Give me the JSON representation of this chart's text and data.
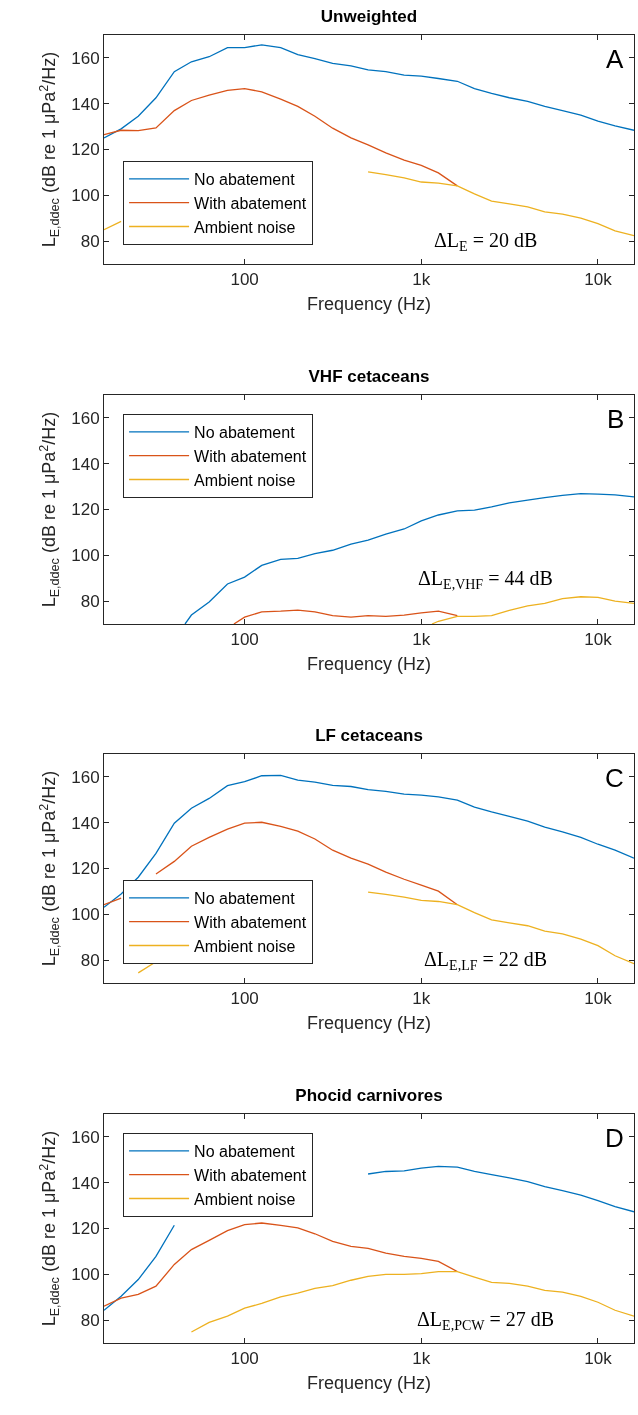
{
  "chart_data": [
    {
      "type": "line",
      "title": "Unweighted",
      "xlabel": "Frequency (Hz)",
      "ylabel": "L$_{E,ddec}$ (dB re 1 μPa$^{2}$/Hz)",
      "annotations": [
        "A",
        "ΔL$_{E}$ = 20 dB"
      ],
      "log": "x",
      "xlim": [
        16,
        16000
      ],
      "xticks": [
        {
          "value": 100,
          "label": "100"
        },
        {
          "value": 1000,
          "label": "1k"
        },
        {
          "value": 10000,
          "label": "10k"
        }
      ],
      "ylim": [
        70,
        170
      ],
      "yticks": [
        80,
        100,
        120,
        140,
        160
      ],
      "grid": false,
      "legend": "bottom left",
      "x": [
        16,
        20,
        25,
        31.5,
        40,
        50,
        63,
        80,
        100,
        125,
        160,
        200,
        250,
        315,
        400,
        500,
        630,
        800,
        1000,
        1250,
        1600,
        2000,
        2500,
        3150,
        4000,
        5000,
        6300,
        8000,
        10000,
        12500,
        16000
      ],
      "series": [
        {
          "name": "No abatement",
          "color": "#0072bd",
          "values": [
            125,
            129,
            134.5,
            142.6,
            154,
            158.3,
            160.5,
            164.5,
            164.5,
            165.7,
            164.5,
            161.4,
            159.7,
            157.6,
            156.5,
            154.8,
            154,
            152.5,
            152,
            151,
            149.8,
            146.6,
            144.5,
            142.6,
            141,
            138.8,
            137,
            135,
            132.4,
            130.3,
            128.4
          ]
        },
        {
          "name": "With abatement",
          "color": "#d95319",
          "values": [
            126.5,
            128.4,
            128.2,
            129.4,
            137,
            141.4,
            143.7,
            145.8,
            146.6,
            145.2,
            142,
            138.8,
            134.5,
            129.3,
            125.1,
            122,
            118.5,
            115.4,
            113.1,
            109.8,
            104.1,
            null,
            null,
            null,
            null,
            null,
            null,
            null,
            null,
            null,
            null
          ]
        },
        {
          "name": "Ambient noise",
          "color": "#edb120",
          "values": [
            85,
            88.6,
            null,
            null,
            null,
            null,
            null,
            null,
            null,
            null,
            null,
            null,
            null,
            null,
            null,
            110.2,
            109,
            107.6,
            105.8,
            105.3,
            104.1,
            100.6,
            97.5,
            96.3,
            94.9,
            92.8,
            91.8,
            90,
            87.6,
            84.5,
            82.4
          ]
        }
      ]
    },
    {
      "type": "line",
      "title": "VHF cetaceans",
      "xlabel": "Frequency (Hz)",
      "ylabel": "L$_{E,ddec}$ (dB re 1 μPa$^{2}$/Hz)",
      "annotations": [
        "B",
        "ΔL$_{E,VHF}$ = 44 dB"
      ],
      "log": "x",
      "xlim": [
        16,
        16000
      ],
      "xticks": [
        {
          "value": 100,
          "label": "100"
        },
        {
          "value": 1000,
          "label": "1k"
        },
        {
          "value": 10000,
          "label": "10k"
        }
      ],
      "ylim": [
        70,
        170
      ],
      "yticks": [
        80,
        100,
        120,
        140,
        160
      ],
      "grid": false,
      "legend": "top left",
      "series": [
        {
          "name": "No abatement",
          "color": "#0072bd",
          "x": [
            46,
            50,
            63,
            80,
            100,
            125,
            160,
            200,
            250,
            315,
            400,
            500,
            630,
            800,
            1000,
            1250,
            1600,
            2000,
            2500,
            3150,
            4000,
            5000,
            6300,
            8000,
            10000,
            12500,
            16000
          ],
          "values": [
            70,
            73.9,
            79.6,
            87.5,
            90.5,
            95.6,
            98.2,
            98.7,
            100.7,
            102.2,
            104.9,
            106.6,
            109.2,
            111.5,
            115,
            117.6,
            119.4,
            119.7,
            121.1,
            122.9,
            124.1,
            125.2,
            126.2,
            126.9,
            126.7,
            126.4,
            125.5
          ]
        },
        {
          "name": "With abatement",
          "color": "#d95319",
          "x": [
            87,
            100,
            125,
            160,
            200,
            250,
            315,
            400,
            500,
            630,
            800,
            1000,
            1250,
            1600
          ],
          "values": [
            70,
            73,
            75.3,
            75.6,
            76.1,
            75.3,
            73.7,
            73,
            73.7,
            73.3,
            73.9,
            74.9,
            75.6,
            73.7
          ]
        },
        {
          "name": "Ambient noise",
          "color": "#edb120",
          "x": [
            1150,
            1250,
            1600,
            2000,
            2500,
            3150,
            4000,
            5000,
            6300,
            8000,
            10000,
            12500,
            16000
          ],
          "values": [
            70,
            71.2,
            73.3,
            73.3,
            73.7,
            76,
            77.9,
            79,
            81.1,
            81.9,
            81.6,
            80,
            79
          ]
        }
      ]
    },
    {
      "type": "line",
      "title": "LF cetaceans",
      "xlabel": "Frequency (Hz)",
      "ylabel": "L$_{E,ddec}$ (dB re 1 μPa$^{2}$/Hz)",
      "annotations": [
        "C",
        "ΔL$_{E,LF}$ = 22 dB"
      ],
      "log": "x",
      "xlim": [
        16,
        16000
      ],
      "xticks": [
        {
          "value": 100,
          "label": "100"
        },
        {
          "value": 1000,
          "label": "1k"
        },
        {
          "value": 10000,
          "label": "10k"
        }
      ],
      "ylim": [
        70,
        170
      ],
      "yticks": [
        80,
        100,
        120,
        140,
        160
      ],
      "grid": false,
      "legend": "bottom left",
      "x": [
        16,
        20,
        25,
        31.5,
        40,
        50,
        63,
        80,
        100,
        125,
        160,
        200,
        250,
        315,
        400,
        500,
        630,
        800,
        1000,
        1250,
        1600,
        2000,
        2500,
        3150,
        4000,
        5000,
        6300,
        8000,
        10000,
        12500,
        16000
      ],
      "series": [
        {
          "name": "No abatement",
          "color": "#0072bd",
          "values": [
            103.1,
            108.9,
            116.2,
            126.6,
            139.8,
            146.3,
            150.6,
            156.2,
            157.9,
            160.5,
            160.7,
            158.6,
            157.7,
            156.3,
            155.8,
            154.4,
            153.7,
            152.5,
            152,
            151.3,
            149.9,
            146.8,
            144.7,
            142.8,
            140.7,
            138.1,
            136,
            133.6,
            130.6,
            128,
            124.5
          ]
        },
        {
          "name": "With abatement",
          "color": "#d95319",
          "values": [
            104.2,
            107.1,
            null,
            117.6,
            123.1,
            129.7,
            133.6,
            137.2,
            139.8,
            140.2,
            138.4,
            136.3,
            132.9,
            128,
            124.5,
            121.9,
            118.4,
            115.3,
            112.7,
            110.1,
            104.2,
            null,
            null,
            null,
            null,
            null,
            null,
            null,
            null,
            null,
            null
          ]
        },
        {
          "name": "Ambient noise",
          "color": "#edb120",
          "values": [
            null,
            null,
            74.4,
            79.3,
            null,
            null,
            null,
            null,
            null,
            null,
            null,
            null,
            null,
            null,
            null,
            109.7,
            108.7,
            107.5,
            106.1,
            105.6,
            104.2,
            100.7,
            97.6,
            96.3,
            95,
            92.7,
            91.5,
            89.2,
            86.3,
            81.9,
            78.4
          ]
        }
      ]
    },
    {
      "type": "line",
      "title": "Phocid carnivores",
      "xlabel": "Frequency (Hz)",
      "ylabel": "L$_{E,ddec}$ (dB re 1 μPa$^{2}$/Hz)",
      "annotations": [
        "D",
        "ΔL$_{E,PCW}$ = 27 dB"
      ],
      "log": "x",
      "xlim": [
        16,
        16000
      ],
      "xticks": [
        {
          "value": 100,
          "label": "100"
        },
        {
          "value": 1000,
          "label": "1k"
        },
        {
          "value": 10000,
          "label": "10k"
        }
      ],
      "ylim": [
        70,
        170
      ],
      "yticks": [
        80,
        100,
        120,
        140,
        160
      ],
      "grid": false,
      "legend": "top left",
      "x": [
        16,
        20,
        25,
        31.5,
        40,
        50,
        63,
        80,
        100,
        125,
        160,
        200,
        250,
        315,
        400,
        500,
        630,
        800,
        1000,
        1250,
        1600,
        2000,
        2500,
        3150,
        4000,
        5000,
        6300,
        8000,
        10000,
        12500,
        16000
      ],
      "series": [
        {
          "name": "No abatement",
          "color": "#0072bd",
          "values": [
            84.3,
            90.4,
            97.7,
            107.8,
            121.4,
            null,
            null,
            null,
            null,
            null,
            null,
            null,
            null,
            null,
            null,
            143.8,
            144.9,
            145.2,
            146.4,
            147.1,
            146.8,
            144.9,
            143.5,
            142.1,
            140.5,
            138.3,
            136.5,
            134.6,
            132.2,
            129.6,
            127.3
          ]
        },
        {
          "name": "With abatement",
          "color": "#d95319",
          "values": [
            86.1,
            89.6,
            91.2,
            94.8,
            104.3,
            110.8,
            114.8,
            119.1,
            121.7,
            122.4,
            121.4,
            120.3,
            117.7,
            114.4,
            112.2,
            111.3,
            109.2,
            107.8,
            107,
            105.6,
            101.2,
            null,
            null,
            null,
            null,
            null,
            null,
            null,
            null,
            null,
            null
          ]
        },
        {
          "name": "Ambient noise",
          "color": "#edb120",
          "values": [
            null,
            null,
            null,
            null,
            null,
            74.8,
            79,
            81.7,
            85.2,
            87.3,
            90.1,
            91.8,
            93.9,
            95.1,
            97.4,
            99.1,
            100,
            100,
            100.3,
            101.2,
            101.2,
            98.8,
            96.5,
            96,
            94.8,
            93,
            92.2,
            90.4,
            87.8,
            84.3,
            81.7
          ]
        }
      ]
    }
  ]
}
